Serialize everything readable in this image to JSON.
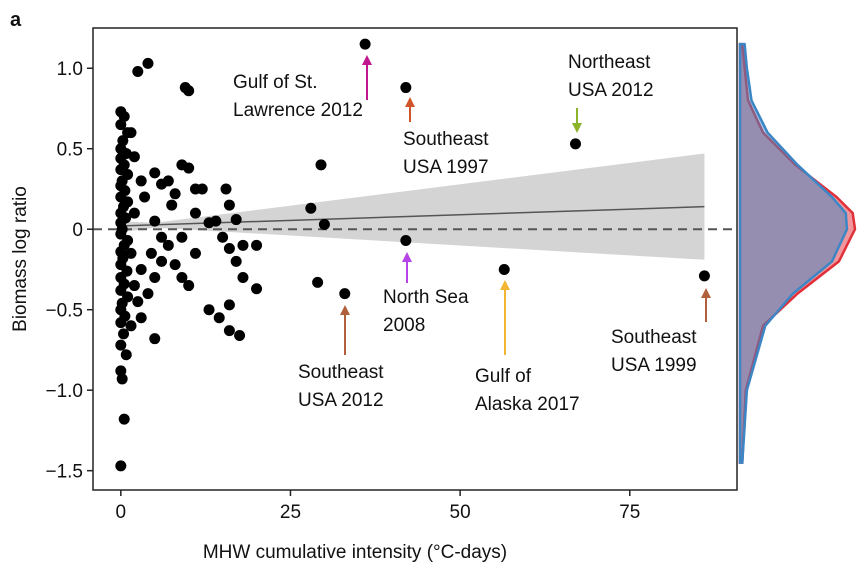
{
  "chart_data": {
    "type": "scatter",
    "panel_label": "a",
    "xlabel": "MHW cumulative intensity (°C-days)",
    "ylabel": "Biomass log ratio",
    "xlim": [
      -4.1,
      90.8
    ],
    "ylim": [
      -1.62,
      1.25
    ],
    "xticks": [
      0,
      25,
      50,
      75
    ],
    "yticks": [
      {
        "value": 1.0,
        "label": "1.0"
      },
      {
        "value": 0.5,
        "label": "0.5"
      },
      0,
      {
        "value": -0.5,
        "label": "−0.5"
      },
      {
        "value": -1.0,
        "label": "−1.0"
      },
      {
        "value": -1.5,
        "label": "−1.5"
      }
    ],
    "color": "#000000",
    "x": [
      0,
      0.5,
      0,
      1,
      0.3,
      0,
      0.8,
      0,
      0.5,
      0,
      1,
      0.2,
      0,
      0.6,
      0,
      1,
      0.4,
      0,
      0.7,
      0,
      0.2,
      0,
      1,
      0.5,
      0,
      0.3,
      0,
      0.9,
      0,
      0.5,
      0,
      1,
      0.2,
      0,
      0.6,
      0,
      0.4,
      0,
      0.8,
      0,
      0.2,
      0.5,
      0,
      1.5,
      2,
      2.5,
      3,
      4,
      3.5,
      5,
      6,
      7,
      8,
      9,
      9.5,
      10,
      10,
      11,
      12,
      15.5,
      16,
      17,
      14,
      13,
      11,
      9,
      7,
      6,
      5,
      4.5,
      3,
      2,
      2.5,
      3,
      4,
      5,
      6,
      8,
      9,
      11,
      15,
      16,
      17,
      18,
      20,
      18,
      20,
      16,
      13,
      14.5,
      16,
      17.5,
      5,
      10,
      1.5,
      2,
      1.5,
      7.5,
      36,
      42,
      67,
      42,
      56.5,
      33,
      86,
      28,
      30,
      29.5,
      29
    ],
    "y": [
      0.73,
      0.7,
      0.65,
      0.6,
      0.55,
      0.5,
      0.47,
      0.44,
      0.4,
      0.37,
      0.34,
      0.3,
      0.27,
      0.24,
      0.2,
      0.17,
      0.14,
      0.1,
      0.07,
      0.04,
      0.0,
      -0.03,
      -0.07,
      -0.1,
      -0.14,
      -0.18,
      -0.22,
      -0.26,
      -0.3,
      -0.34,
      -0.38,
      -0.42,
      -0.46,
      -0.5,
      -0.54,
      -0.58,
      -0.65,
      -0.72,
      -0.78,
      -0.88,
      -0.93,
      -1.18,
      -1.47,
      0.6,
      0.45,
      0.98,
      0.3,
      1.03,
      0.2,
      0.35,
      0.28,
      0.3,
      0.22,
      0.4,
      0.88,
      0.86,
      0.38,
      0.25,
      0.25,
      0.25,
      0.15,
      0.06,
      0.05,
      0.04,
      0.1,
      -0.05,
      -0.1,
      -0.05,
      0.05,
      -0.15,
      -0.25,
      -0.35,
      -0.45,
      -0.55,
      -0.4,
      -0.3,
      -0.2,
      -0.22,
      -0.3,
      -0.15,
      -0.05,
      -0.12,
      -0.2,
      -0.1,
      -0.1,
      -0.3,
      -0.37,
      -0.47,
      -0.5,
      -0.55,
      -0.63,
      -0.66,
      -0.68,
      -0.35,
      -0.6,
      0.1,
      -0.15,
      0.15,
      1.15,
      0.88,
      0.53,
      -0.07,
      -0.25,
      -0.4,
      -0.29,
      0.13,
      0.03,
      0.4,
      -0.33
    ],
    "trend": {
      "x": [
        0,
        86
      ],
      "values": [
        0.02,
        0.14
      ]
    },
    "band": {
      "x": [
        0,
        5,
        86
      ],
      "upper": [
        0.05,
        0.04,
        0.47
      ],
      "lower": [
        -0.02,
        0.01,
        -0.19
      ]
    },
    "density": {
      "y": [
        -1.45,
        -1.0,
        -0.6,
        -0.4,
        -0.2,
        0,
        0.1,
        0.2,
        0.4,
        0.6,
        0.8,
        1.0,
        1.15
      ],
      "series": [
        {
          "name": "red",
          "color": "#e0303a",
          "values": [
            0.02,
            0.05,
            0.2,
            0.5,
            0.86,
            1.0,
            0.98,
            0.84,
            0.48,
            0.2,
            0.07,
            0.04,
            0.02
          ]
        },
        {
          "name": "blue",
          "color": "#3d86c6",
          "values": [
            0.02,
            0.06,
            0.22,
            0.46,
            0.8,
            0.93,
            0.92,
            0.8,
            0.5,
            0.24,
            0.1,
            0.06,
            0.04
          ]
        }
      ],
      "lim": [
        0,
        1
      ]
    },
    "annotations": [
      {
        "lines": [
          "Gulf of St.",
          "Lawrence 2012"
        ],
        "color": "#c0178f"
      },
      {
        "lines": [
          "Southeast",
          "USA 1997"
        ],
        "color": "#d0562a"
      },
      {
        "lines": [
          "Northeast",
          "USA 2012"
        ],
        "color": "#8db32a"
      },
      {
        "lines": [
          "North Sea",
          "2008"
        ],
        "color": "#b545e8"
      },
      {
        "lines": [
          "Gulf of",
          "Alaska 2017"
        ],
        "color": "#f2b632"
      },
      {
        "lines": [
          "Southeast",
          "USA 2012"
        ],
        "color": "#b0603a"
      },
      {
        "lines": [
          "Southeast",
          "USA 1999"
        ],
        "color": "#b0603a"
      }
    ]
  }
}
